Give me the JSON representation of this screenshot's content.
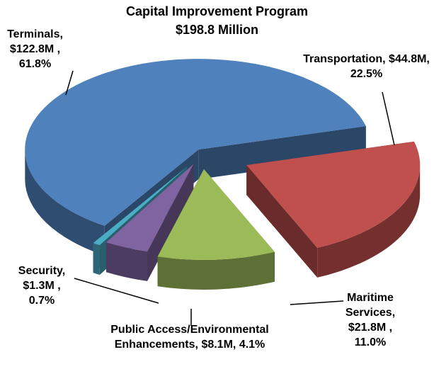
{
  "chart_data": {
    "type": "pie",
    "title": "Capital Improvement Program",
    "subtitle": "$198.8 Million",
    "categories": [
      "Terminals,",
      "Transportation,",
      "Maritime Services,",
      "Public Access/Environmental Enhancements,",
      "Security,"
    ],
    "amount_labels": [
      "$122.8M ,",
      "$44.8M,",
      "$21.8M ,",
      "$8.1M,",
      "$1.3M ,"
    ],
    "values": [
      61.8,
      22.5,
      11.0,
      4.1,
      0.7
    ],
    "value_labels": [
      "61.8%",
      "22.5%",
      "11.0%",
      "4.1%",
      "0.7%"
    ],
    "colors": [
      "#4f81bd",
      "#c0504d",
      "#9bbb59",
      "#8064a2",
      "#4bacc6"
    ],
    "start_slice": 1
  }
}
